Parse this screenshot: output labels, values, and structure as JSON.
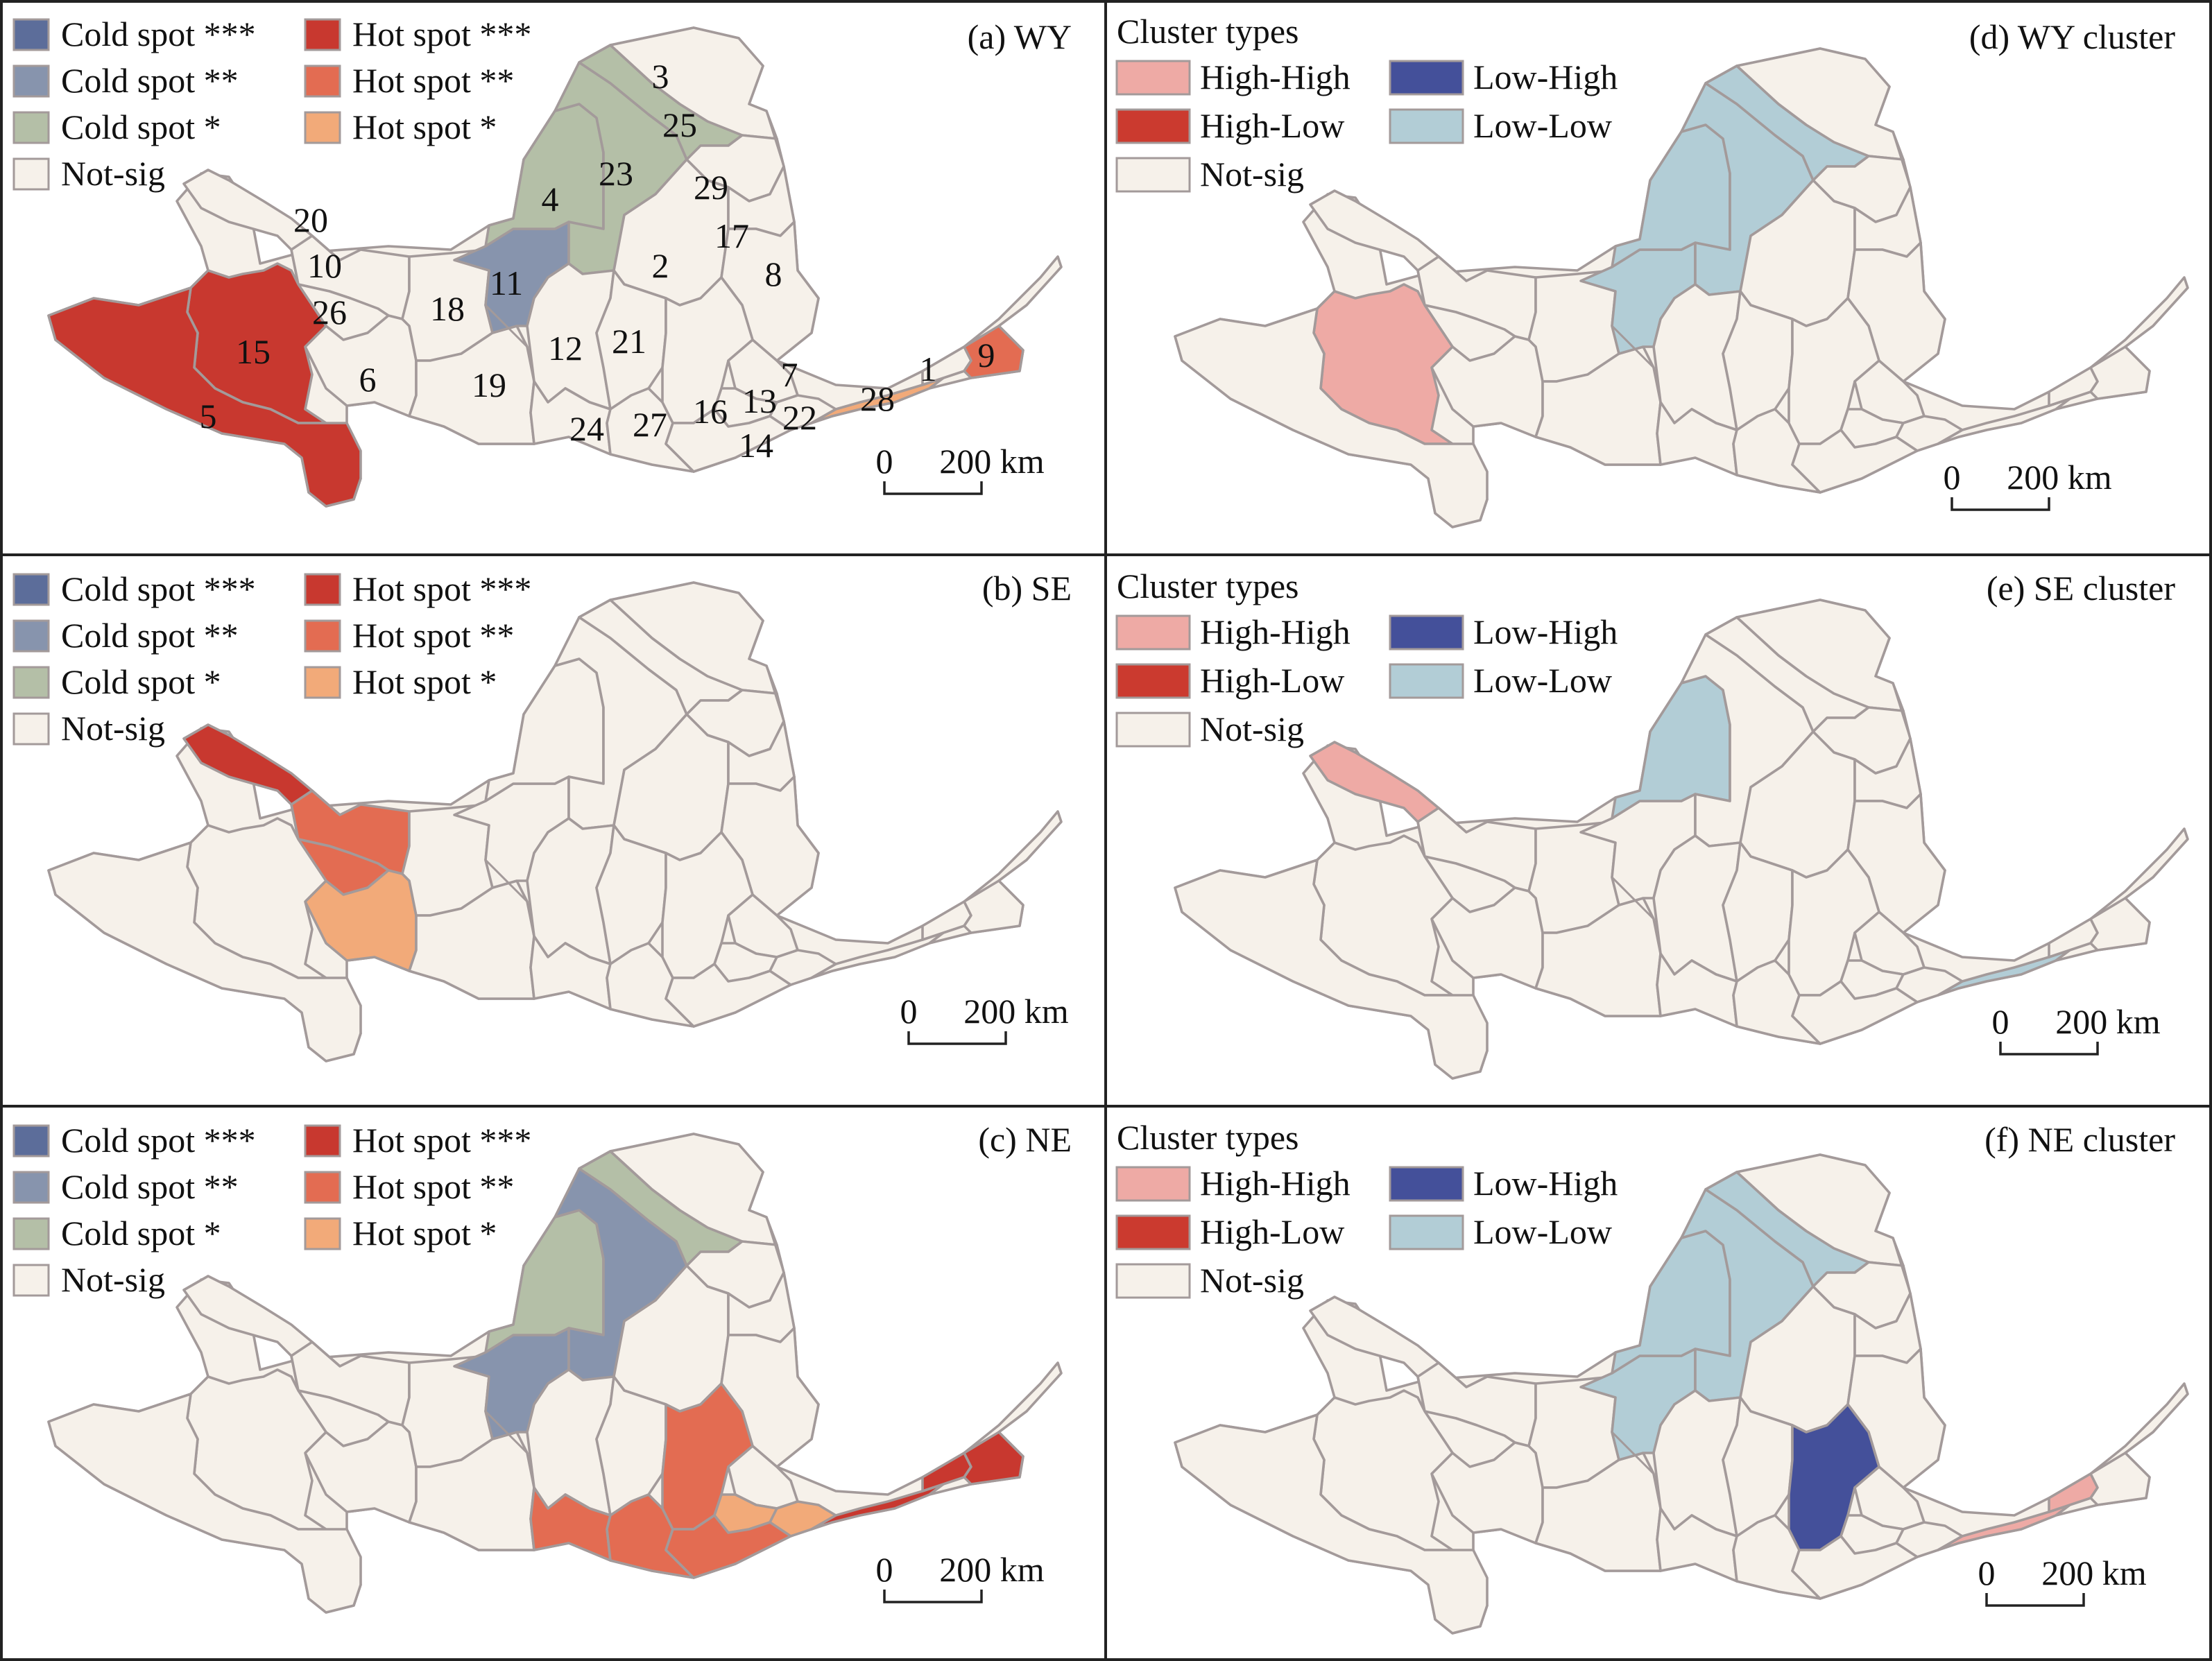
{
  "colors": {
    "not_sig": "#f6f1ea",
    "boundary": "#a39a9a",
    "hot3": "#c8382f",
    "hot2": "#e36c52",
    "hot1": "#f2aa79",
    "cold3": "#5c6d9a",
    "cold2": "#8794ad",
    "cold1": "#b4bfa7",
    "high_high": "#eeaaa5",
    "high_low": "#cb3a2f",
    "low_high": "#44509a",
    "low_low": "#b2cdd6"
  },
  "hotspot_legend": [
    {
      "key": "cold3",
      "label": "Cold spot ***"
    },
    {
      "key": "cold2",
      "label": "Cold spot **"
    },
    {
      "key": "cold1",
      "label": "Cold spot *"
    },
    {
      "key": "not_sig",
      "label": "Not-sig"
    },
    {
      "key": "hot3",
      "label": "Hot spot ***"
    },
    {
      "key": "hot2",
      "label": "Hot spot **"
    },
    {
      "key": "hot1",
      "label": "Hot spot *"
    }
  ],
  "cluster_legend": {
    "title": "Cluster types",
    "items": [
      {
        "key": "high_high",
        "label": "High-High"
      },
      {
        "key": "high_low",
        "label": "High-Low"
      },
      {
        "key": "not_sig",
        "label": "Not-sig"
      },
      {
        "key": "low_high",
        "label": "Low-High"
      },
      {
        "key": "low_low",
        "label": "Low-Low"
      }
    ]
  },
  "scale_bar": {
    "zero": "0",
    "distance": "200 km"
  },
  "panels": [
    {
      "id": "a",
      "title": "(a) WY",
      "kind": "hotspot",
      "show_labels": true,
      "fills": {
        "5": "hot3",
        "15": "hot3",
        "11": "cold2",
        "4": "cold1",
        "23": "cold1",
        "25": "cold1",
        "9": "hot2",
        "28": "hot1"
      }
    },
    {
      "id": "b",
      "title": "(b) SE",
      "kind": "hotspot",
      "show_labels": false,
      "fills": {
        "20": "hot3",
        "10": "hot2",
        "26": "hot2",
        "6": "hot1"
      }
    },
    {
      "id": "c",
      "title": "(c) NE",
      "kind": "hotspot",
      "show_labels": false,
      "fills": {
        "4": "cold1",
        "25": "cold1",
        "23": "cold2",
        "11": "cold2",
        "24": "hot2",
        "27": "hot2",
        "16": "hot2",
        "14": "hot2",
        "13": "hot1",
        "22": "hot1",
        "28": "hot3",
        "1": "hot3",
        "9": "hot3"
      }
    },
    {
      "id": "d",
      "title": "(d) WY cluster",
      "kind": "cluster",
      "show_labels": false,
      "fills": {
        "15": "high_high",
        "4": "low_low",
        "23": "low_low",
        "25": "low_low",
        "11": "low_low"
      }
    },
    {
      "id": "e",
      "title": "(e) SE cluster",
      "kind": "cluster",
      "show_labels": false,
      "fills": {
        "20": "high_high",
        "4": "low_low",
        "28": "low_low"
      }
    },
    {
      "id": "f",
      "title": "(f) NE cluster",
      "kind": "cluster",
      "show_labels": false,
      "fills": {
        "4": "low_low",
        "23": "low_low",
        "25": "low_low",
        "11": "low_low",
        "16": "low_high",
        "1": "high_high",
        "28": "high_high"
      }
    }
  ],
  "region_labels": [
    "1",
    "2",
    "3",
    "4",
    "5",
    "6",
    "7",
    "8",
    "9",
    "10",
    "11",
    "12",
    "13",
    "14",
    "15",
    "16",
    "17",
    "18",
    "19",
    "20",
    "21",
    "22",
    "23",
    "24",
    "25",
    "26",
    "27",
    "28",
    "29"
  ]
}
